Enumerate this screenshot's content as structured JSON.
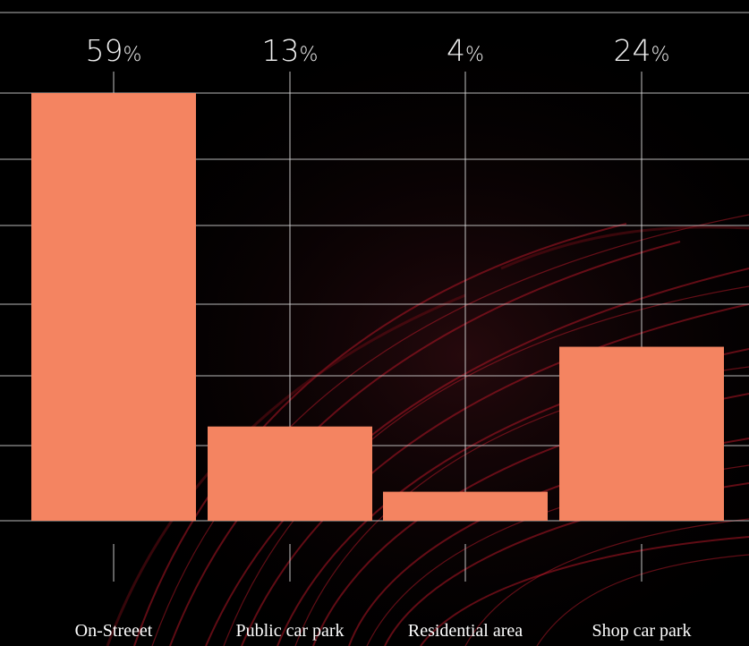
{
  "chart_data": {
    "type": "bar",
    "categories": [
      "On-Streeet",
      "Public car park",
      "Residential area",
      "Shop car park"
    ],
    "values": [
      59,
      13,
      4,
      24
    ],
    "value_suffix": "%",
    "ylim": [
      0,
      59
    ],
    "grid": true,
    "colors": {
      "bar": "#f48461",
      "background": "#000000",
      "grid": "#d8d8d8",
      "text": "#ffffff",
      "trails": "#b01626"
    }
  }
}
